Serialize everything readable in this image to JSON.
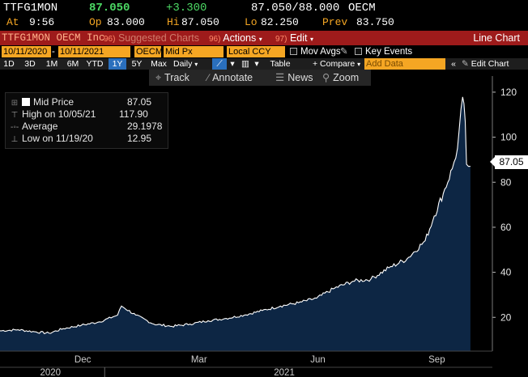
{
  "quote": {
    "ticker": "TTFG1MON",
    "last": "87.050",
    "change": "+3.300",
    "bid_ask": "87.050/88.000",
    "source": "OECM",
    "at_label": "At",
    "time": "9:56",
    "open_label": "Op",
    "open": "83.000",
    "high_label": "Hi",
    "high": "87.050",
    "low_label": "Lo",
    "low": "82.250",
    "prev_label": "Prev",
    "prev": "83.750"
  },
  "titlebar": {
    "ticker_label": "TTFG1MON OECM Inc",
    "suggested_num": "96)",
    "suggested_label": "Suggested Charts",
    "actions_num": "96)",
    "actions_label": "Actions",
    "edit_num": "97)",
    "edit_label": "Edit",
    "chart_type": "Line Chart"
  },
  "inputs": {
    "start_date": "10/11/2020",
    "end_date": "10/11/2021",
    "source": "OECM",
    "field": "Mid Px",
    "currency": "Local CCY",
    "mov_avgs": "Mov Avgs",
    "key_events": "Key Events"
  },
  "periods": {
    "items": [
      "1D",
      "3D",
      "1M",
      "6M",
      "YTD",
      "1Y",
      "5Y",
      "Max"
    ],
    "selected": "1Y",
    "frequency": "Daily",
    "table": "Table",
    "compare": "+ Compare",
    "add_data_placeholder": "Add Data",
    "edit_chart": "Edit Chart"
  },
  "toolbar": {
    "track": "Track",
    "annotate": "Annotate",
    "news": "News",
    "zoom": "Zoom"
  },
  "legend": {
    "mid_label": "Mid Price",
    "mid_value": "87.05",
    "high_label": "High on 10/05/21",
    "high_value": "117.90",
    "avg_label": "Average",
    "avg_value": "29.1978",
    "low_label": "Low on 11/19/20",
    "low_value": "12.95"
  },
  "last_price_tag": "87.05",
  "colors": {
    "area_fill": "#0d2644",
    "line": "#ffffff",
    "accent_orange": "#f5a623",
    "title_red": "#9e1b1b",
    "change_green": "#4cd964"
  },
  "chart_data": {
    "type": "area",
    "series": [
      {
        "name": "Mid Price",
        "x": [
          "2020-10-12",
          "2020-10-26",
          "2020-11-09",
          "2020-11-19",
          "2020-11-30",
          "2020-12-14",
          "2020-12-28",
          "2021-01-11",
          "2021-01-14",
          "2021-01-25",
          "2021-02-08",
          "2021-02-22",
          "2021-03-08",
          "2021-03-22",
          "2021-04-05",
          "2021-04-19",
          "2021-05-03",
          "2021-05-17",
          "2021-05-31",
          "2021-06-14",
          "2021-06-28",
          "2021-07-12",
          "2021-07-26",
          "2021-08-09",
          "2021-08-23",
          "2021-09-06",
          "2021-09-13",
          "2021-09-20",
          "2021-09-27",
          "2021-10-01",
          "2021-10-05",
          "2021-10-07",
          "2021-10-08",
          "2021-10-11"
        ],
        "values": [
          14.0,
          14.5,
          13.5,
          12.95,
          15.0,
          16.5,
          18.0,
          21.0,
          25.0,
          21.0,
          17.0,
          16.0,
          17.0,
          18.5,
          19.5,
          21.0,
          23.0,
          25.0,
          26.5,
          28.5,
          33.0,
          36.0,
          37.0,
          42.0,
          46.0,
          54.0,
          65.0,
          75.0,
          86.0,
          95.0,
          117.9,
          107.0,
          88.0,
          87.05
        ]
      }
    ],
    "xticks": [
      "Dec",
      "Mar",
      "Jun",
      "Sep"
    ],
    "year_labels": [
      "2020",
      "2021"
    ],
    "yticks": [
      20,
      40,
      60,
      80,
      100,
      120
    ],
    "ylim": [
      5,
      125
    ],
    "xlim": [
      "2020-10-12",
      "2021-10-28"
    ],
    "y_axis_position": "right",
    "grid": false
  }
}
